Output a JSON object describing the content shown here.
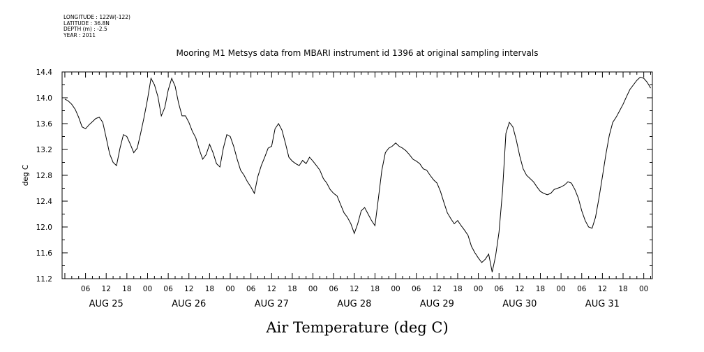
{
  "header": {
    "longitude": "LONGITUDE : 122W(-122)",
    "latitude": "LATITUDE : 36.8N",
    "depth": "DEPTH (m) : -2.5",
    "year": "YEAR : 2011"
  },
  "chart_data": {
    "type": "line",
    "title": "Mooring M1 Metsys data from MBARI instrument id 1396 at original sampling intervals",
    "xlabel": "Air Temperature (deg C)",
    "ylabel": "deg C",
    "ylim": [
      11.2,
      14.4
    ],
    "y_ticks": [
      "11.2",
      "11.6",
      "12.0",
      "12.4",
      "12.8",
      "13.2",
      "13.6",
      "14.0",
      "14.4"
    ],
    "x_unit": "hours since 2011-08-25 00:00",
    "xlim": [
      -0.8,
      170.5
    ],
    "hour_ticks": [
      {
        "h": 6,
        "label": "06"
      },
      {
        "h": 12,
        "label": "12"
      },
      {
        "h": 18,
        "label": "18"
      },
      {
        "h": 24,
        "label": "00"
      },
      {
        "h": 30,
        "label": "06"
      },
      {
        "h": 36,
        "label": "12"
      },
      {
        "h": 42,
        "label": "18"
      },
      {
        "h": 48,
        "label": "00"
      },
      {
        "h": 54,
        "label": "06"
      },
      {
        "h": 60,
        "label": "12"
      },
      {
        "h": 66,
        "label": "18"
      },
      {
        "h": 72,
        "label": "00"
      },
      {
        "h": 78,
        "label": "06"
      },
      {
        "h": 84,
        "label": "12"
      },
      {
        "h": 90,
        "label": "18"
      },
      {
        "h": 96,
        "label": "00"
      },
      {
        "h": 102,
        "label": "06"
      },
      {
        "h": 108,
        "label": "12"
      },
      {
        "h": 114,
        "label": "18"
      },
      {
        "h": 120,
        "label": "00"
      },
      {
        "h": 126,
        "label": "06"
      },
      {
        "h": 132,
        "label": "12"
      },
      {
        "h": 138,
        "label": "18"
      },
      {
        "h": 144,
        "label": "00"
      },
      {
        "h": 150,
        "label": "06"
      },
      {
        "h": 156,
        "label": "12"
      },
      {
        "h": 162,
        "label": "18"
      },
      {
        "h": 168,
        "label": "00"
      }
    ],
    "day_labels": [
      {
        "h": 12,
        "label": "AUG 25"
      },
      {
        "h": 36,
        "label": "AUG 26"
      },
      {
        "h": 60,
        "label": "AUG 27"
      },
      {
        "h": 84,
        "label": "AUG 28"
      },
      {
        "h": 108,
        "label": "AUG 29"
      },
      {
        "h": 132,
        "label": "AUG 30"
      },
      {
        "h": 156,
        "label": "AUG 31"
      }
    ],
    "grid": false,
    "legend": "none",
    "line_color": "#000000",
    "series": [
      {
        "x": [
          0,
          1,
          2,
          3,
          4,
          5,
          6,
          7,
          8,
          9,
          10,
          11,
          12,
          13,
          14,
          15,
          16,
          17,
          18,
          19,
          20,
          21,
          22,
          23,
          24,
          25,
          26,
          27,
          28,
          29,
          30,
          31,
          32,
          33,
          34,
          35,
          36,
          37,
          38,
          39,
          40,
          41,
          42,
          43,
          44,
          45,
          46,
          47,
          48,
          49,
          50,
          51,
          52,
          53,
          54,
          55,
          56,
          57,
          58,
          59,
          60,
          61,
          62,
          63,
          64,
          65,
          66,
          67,
          68,
          69,
          70,
          71,
          72,
          73,
          74,
          75,
          76,
          77,
          78,
          79,
          80,
          81,
          82,
          83,
          84,
          85,
          86,
          87,
          88,
          89,
          90,
          91,
          92,
          93,
          94,
          95,
          96,
          97,
          98,
          99,
          100,
          101,
          102,
          103,
          104,
          105,
          106,
          107,
          108,
          109,
          110,
          111,
          112,
          113,
          114,
          115,
          116,
          117,
          118,
          119,
          120,
          121,
          122,
          123,
          124,
          125,
          126,
          127,
          128,
          129,
          130,
          131,
          132,
          133,
          134,
          135,
          136,
          137,
          138,
          139,
          140,
          141,
          142,
          143,
          144,
          145,
          146,
          147,
          148,
          149,
          150,
          151,
          152,
          153,
          154,
          155,
          156,
          157,
          158,
          159,
          160,
          161,
          162,
          163,
          164,
          165,
          166,
          167,
          168,
          169,
          170
        ],
        "y": [
          13.98,
          13.95,
          13.9,
          13.82,
          13.7,
          13.55,
          13.52,
          13.58,
          13.63,
          13.68,
          13.7,
          13.62,
          13.38,
          13.13,
          13.0,
          12.95,
          13.22,
          13.43,
          13.4,
          13.28,
          13.15,
          13.22,
          13.45,
          13.7,
          13.98,
          14.3,
          14.2,
          14.02,
          13.72,
          13.85,
          14.12,
          14.3,
          14.18,
          13.92,
          13.72,
          13.72,
          13.62,
          13.48,
          13.38,
          13.2,
          13.05,
          13.12,
          13.28,
          13.15,
          12.98,
          12.93,
          13.22,
          13.43,
          13.4,
          13.25,
          13.05,
          12.88,
          12.8,
          12.7,
          12.62,
          12.52,
          12.78,
          12.95,
          13.08,
          13.22,
          13.25,
          13.52,
          13.6,
          13.5,
          13.3,
          13.08,
          13.02,
          12.98,
          12.95,
          13.03,
          12.98,
          13.08,
          13.02,
          12.95,
          12.88,
          12.75,
          12.68,
          12.58,
          12.52,
          12.48,
          12.35,
          12.22,
          12.15,
          12.05,
          11.9,
          12.05,
          12.25,
          12.3,
          12.2,
          12.1,
          12.02,
          12.45,
          12.88,
          13.15,
          13.22,
          13.25,
          13.3,
          13.25,
          13.22,
          13.18,
          13.12,
          13.05,
          13.02,
          12.98,
          12.9,
          12.88,
          12.8,
          12.73,
          12.68,
          12.55,
          12.38,
          12.22,
          12.13,
          12.05,
          12.1,
          12.02,
          11.95,
          11.87,
          11.7,
          11.6,
          11.52,
          11.45,
          11.5,
          11.58,
          11.3,
          11.55,
          11.92,
          12.55,
          13.45,
          13.62,
          13.55,
          13.35,
          13.1,
          12.9,
          12.8,
          12.75,
          12.7,
          12.62,
          12.55,
          12.52,
          12.5,
          12.52,
          12.58,
          12.6,
          12.62,
          12.65,
          12.7,
          12.68,
          12.58,
          12.45,
          12.25,
          12.1,
          12.0,
          11.98,
          12.15,
          12.45,
          12.78,
          13.12,
          13.42,
          13.62,
          13.7,
          13.8,
          13.9,
          14.02,
          14.13,
          14.2,
          14.27,
          14.32,
          14.3,
          14.24,
          14.15
        ],
        "x2": [
          162,
          163,
          164,
          165,
          166,
          167,
          168,
          169,
          170
        ],
        "note": ""
      }
    ]
  }
}
